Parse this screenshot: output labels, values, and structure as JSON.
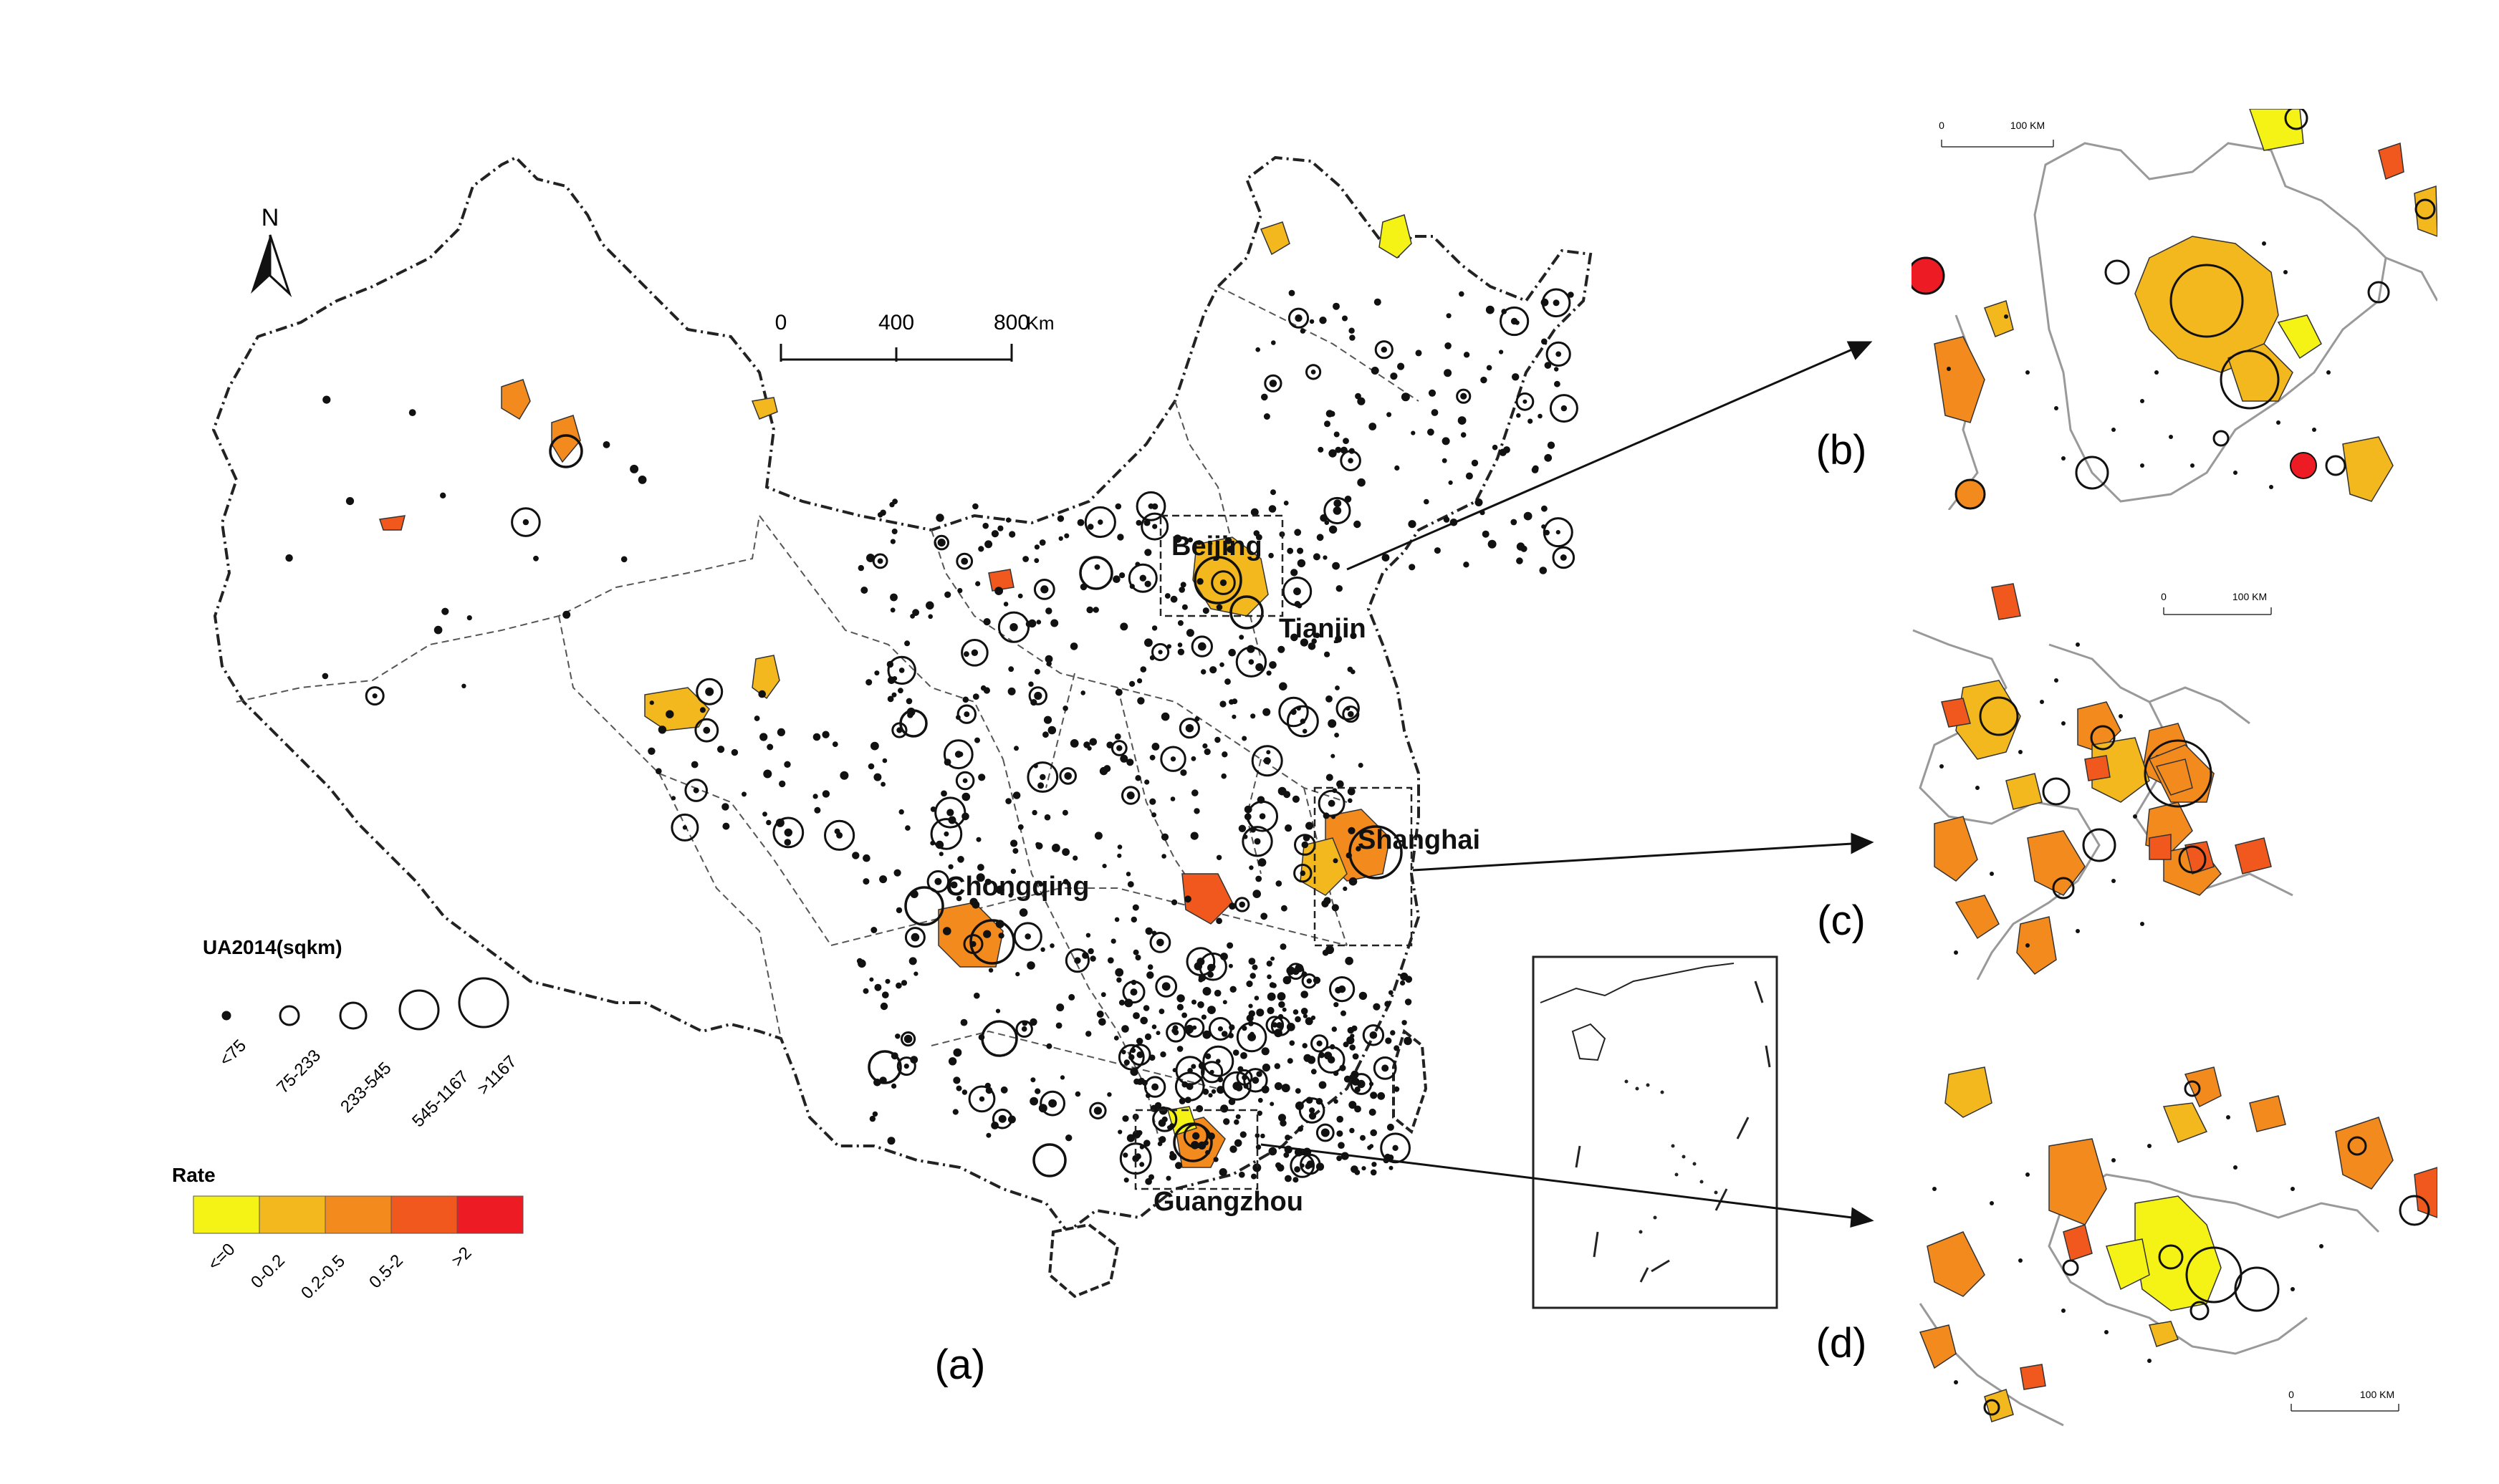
{
  "north_arrow": {
    "label": "N"
  },
  "scale_bar": {
    "ticks": [
      "0",
      "400",
      "800"
    ],
    "unit": "Km"
  },
  "cities": {
    "beijing": "Beijing",
    "tianjin": "Tianjin",
    "shanghai": "Shanghai",
    "chongqing": "Chongqing",
    "guangzhou": "Guangzhou"
  },
  "legend_size": {
    "title": "UA2014(sqkm)",
    "classes": [
      "<75",
      "75-233",
      "233-545",
      "545-1167",
      ">1167"
    ]
  },
  "legend_rate": {
    "title": "Rate",
    "classes": [
      "<=0",
      "0-0.2",
      "0.2-0.5",
      "0.5-2",
      ">2"
    ],
    "colors": [
      "#f5f316",
      "#f2b81d",
      "#f28a1e",
      "#f0581e",
      "#ed1c24"
    ]
  },
  "panel_labels": {
    "a": "(a)",
    "b": "(b)",
    "c": "(c)",
    "d": "(d)"
  },
  "zoom_scale": {
    "ticks": [
      "0",
      "100 KM"
    ]
  }
}
